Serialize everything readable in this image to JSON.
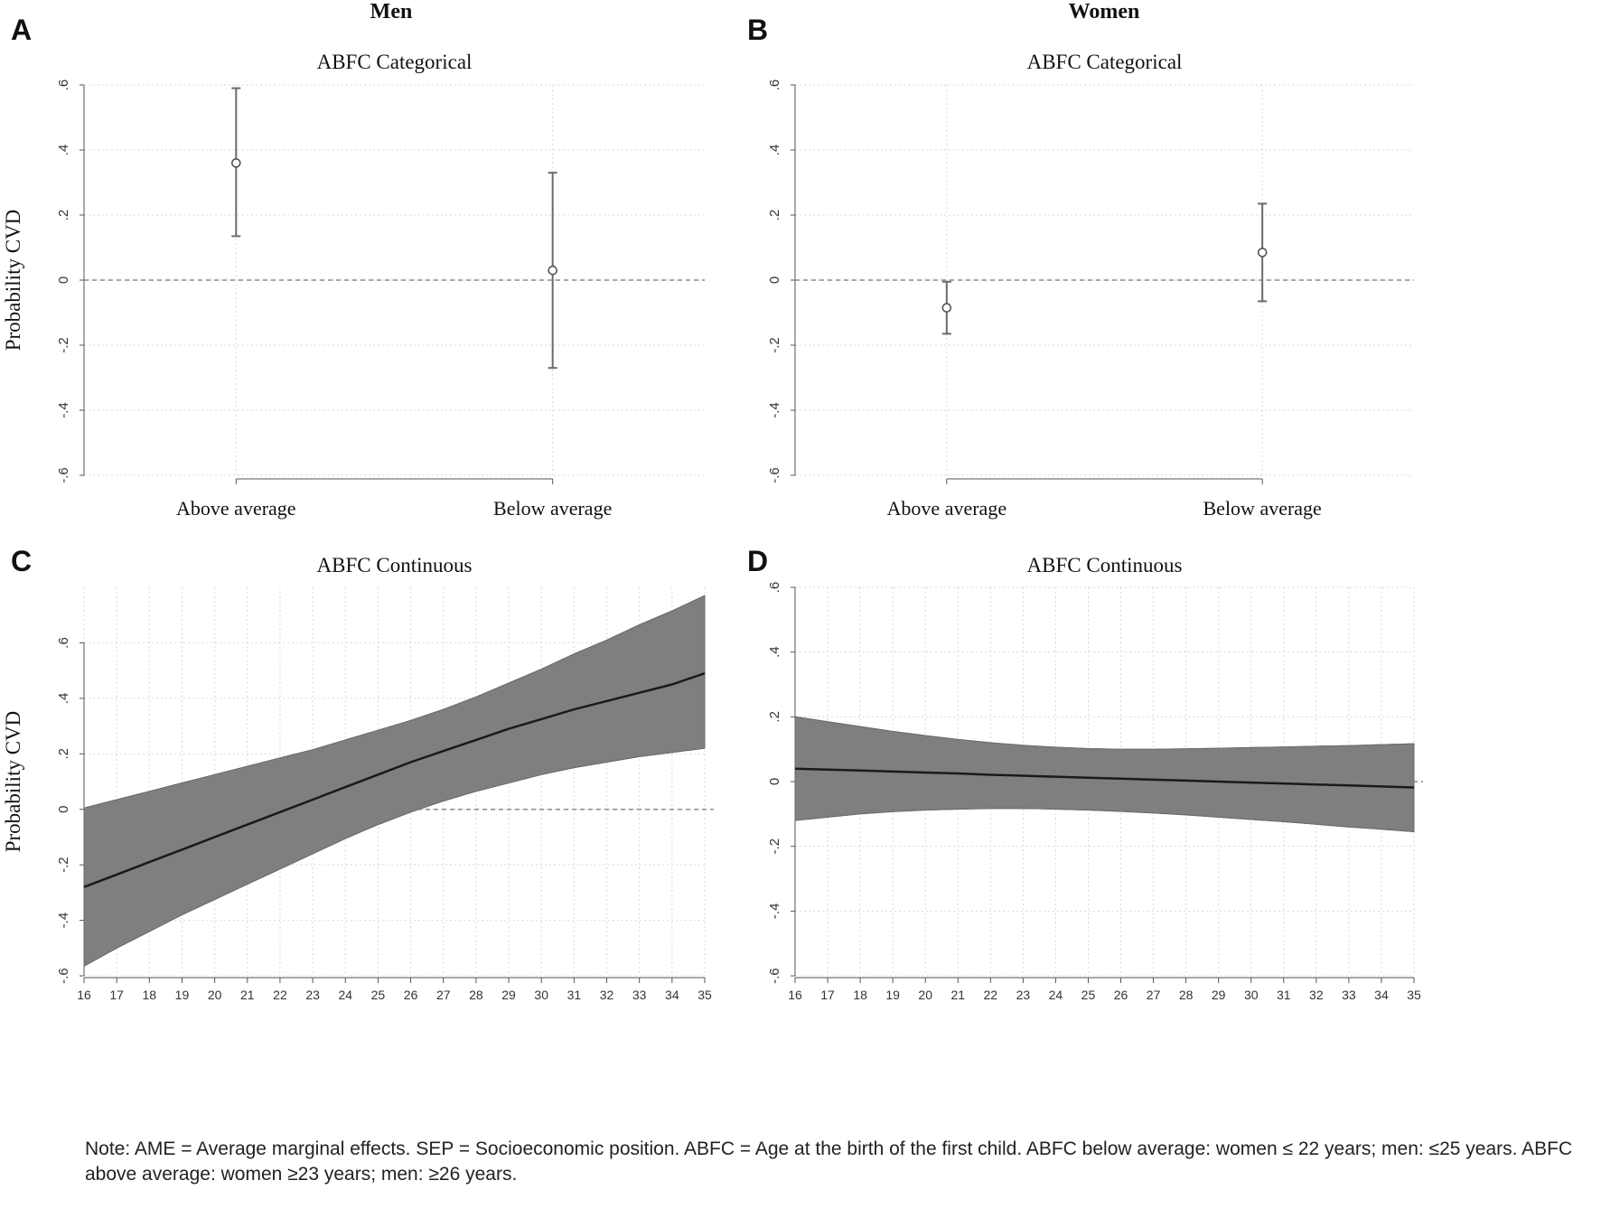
{
  "figure": {
    "col_titles": {
      "men": "Men",
      "women": "Women"
    },
    "note": "Note: AME = Average marginal effects. SEP = Socioeconomic position. ABFC = Age at the birth of the first child. ABFC below average: women ≤ 22 years; men: ≤25 years. ABFC above average: women ≥23 years; men: ≥26 years."
  },
  "colors": {
    "band": "#7f7f7f",
    "line": "#1a1a1a",
    "grid": "#d9d9d9",
    "zero": "#8c8c8c",
    "axis": "#555555",
    "text": "#111111"
  },
  "chart_data": [
    {
      "id": "A",
      "panel_label": "A",
      "type": "scatter",
      "title": "ABFC Categorical",
      "ylabel": "Probability CVD",
      "xlabel": "",
      "categories": [
        "Above average",
        "Below average"
      ],
      "points": [
        {
          "category": "Above average",
          "estimate": 0.36,
          "ci": [
            0.135,
            0.59
          ]
        },
        {
          "category": "Below average",
          "estimate": 0.03,
          "ci": [
            -0.27,
            0.33
          ]
        }
      ],
      "ylim": [
        -0.6,
        0.6
      ],
      "yticks": [
        0.6,
        0.4,
        0.2,
        0,
        -0.2,
        -0.4,
        -0.6
      ],
      "ytick_labels": [
        ".6",
        ".4",
        ".2",
        "0",
        "-.2",
        "-.4",
        "-.6"
      ],
      "reference_line": 0,
      "grid": true
    },
    {
      "id": "B",
      "panel_label": "B",
      "type": "scatter",
      "title": "ABFC Categorical",
      "ylabel": "",
      "xlabel": "",
      "categories": [
        "Above average",
        "Below average"
      ],
      "points": [
        {
          "category": "Above average",
          "estimate": -0.085,
          "ci": [
            -0.165,
            -0.005
          ]
        },
        {
          "category": "Below average",
          "estimate": 0.085,
          "ci": [
            -0.065,
            0.235
          ]
        }
      ],
      "ylim": [
        -0.6,
        0.6
      ],
      "yticks": [
        0.6,
        0.4,
        0.2,
        0,
        -0.2,
        -0.4,
        -0.6
      ],
      "ytick_labels": [
        ".6",
        ".4",
        ".2",
        "0",
        "-.2",
        "-.4",
        "-.6"
      ],
      "reference_line": 0,
      "grid": true
    },
    {
      "id": "C",
      "panel_label": "C",
      "type": "area",
      "title": "ABFC Continuous",
      "ylabel": "Probability CVD",
      "xlabel": "",
      "x": [
        16,
        17,
        18,
        19,
        20,
        21,
        22,
        23,
        24,
        25,
        26,
        27,
        28,
        29,
        30,
        31,
        32,
        33,
        34,
        35
      ],
      "estimate": [
        -0.28,
        -0.235,
        -0.19,
        -0.145,
        -0.1,
        -0.055,
        -0.01,
        0.035,
        0.08,
        0.125,
        0.17,
        0.21,
        0.25,
        0.29,
        0.325,
        0.36,
        0.39,
        0.42,
        0.45,
        0.49
      ],
      "ci_lower": [
        -0.565,
        -0.5,
        -0.44,
        -0.38,
        -0.325,
        -0.27,
        -0.215,
        -0.16,
        -0.105,
        -0.055,
        -0.01,
        0.03,
        0.065,
        0.095,
        0.125,
        0.15,
        0.17,
        0.19,
        0.205,
        0.22
      ],
      "ci_upper": [
        0.005,
        0.035,
        0.065,
        0.095,
        0.125,
        0.155,
        0.185,
        0.215,
        0.25,
        0.285,
        0.32,
        0.36,
        0.405,
        0.455,
        0.505,
        0.56,
        0.61,
        0.665,
        0.715,
        0.77
      ],
      "xlim": [
        16,
        35
      ],
      "ylim": [
        -0.6,
        0.8
      ],
      "yticks": [
        0.6,
        0.4,
        0.2,
        0,
        -0.2,
        -0.4,
        -0.6
      ],
      "ytick_labels": [
        ".6",
        ".4",
        ".2",
        "0",
        "-.2",
        "-.4",
        "-.6"
      ],
      "xticks": [
        16,
        17,
        18,
        19,
        20,
        21,
        22,
        23,
        24,
        25,
        26,
        27,
        28,
        29,
        30,
        31,
        32,
        33,
        34,
        35
      ],
      "xtick_labels": [
        "16",
        "17",
        "18",
        "19",
        "20",
        "21",
        "22",
        "23",
        "24",
        "25",
        "26",
        "27",
        "28",
        "29",
        "30",
        "31",
        "32",
        "33",
        "34",
        "35"
      ],
      "reference_line": 0,
      "grid": true
    },
    {
      "id": "D",
      "panel_label": "D",
      "type": "area",
      "title": "ABFC Continuous",
      "ylabel": "",
      "xlabel": "",
      "x": [
        16,
        17,
        18,
        19,
        20,
        21,
        22,
        23,
        24,
        25,
        26,
        27,
        28,
        29,
        30,
        31,
        32,
        33,
        34,
        35
      ],
      "estimate": [
        0.04,
        0.037,
        0.034,
        0.031,
        0.028,
        0.025,
        0.021,
        0.018,
        0.015,
        0.012,
        0.009,
        0.006,
        0.003,
        0.0,
        -0.003,
        -0.006,
        -0.009,
        -0.012,
        -0.015,
        -0.018
      ],
      "ci_lower": [
        -0.12,
        -0.11,
        -0.1,
        -0.093,
        -0.088,
        -0.085,
        -0.083,
        -0.083,
        -0.085,
        -0.088,
        -0.092,
        -0.097,
        -0.103,
        -0.11,
        -0.117,
        -0.124,
        -0.132,
        -0.14,
        -0.147,
        -0.155
      ],
      "ci_upper": [
        0.2,
        0.185,
        0.17,
        0.155,
        0.142,
        0.13,
        0.12,
        0.112,
        0.106,
        0.102,
        0.1,
        0.1,
        0.101,
        0.103,
        0.105,
        0.107,
        0.109,
        0.111,
        0.114,
        0.117
      ],
      "xlim": [
        16,
        35
      ],
      "ylim": [
        -0.6,
        0.6
      ],
      "yticks": [
        0.6,
        0.4,
        0.2,
        0,
        -0.2,
        -0.4,
        -0.6
      ],
      "ytick_labels": [
        ".6",
        ".4",
        ".2",
        "0",
        "-.2",
        "-.4",
        "-.6"
      ],
      "xticks": [
        16,
        17,
        18,
        19,
        20,
        21,
        22,
        23,
        24,
        25,
        26,
        27,
        28,
        29,
        30,
        31,
        32,
        33,
        34,
        35
      ],
      "xtick_labels": [
        "16",
        "17",
        "18",
        "19",
        "20",
        "21",
        "22",
        "23",
        "24",
        "25",
        "26",
        "27",
        "28",
        "29",
        "30",
        "31",
        "32",
        "33",
        "34",
        "35"
      ],
      "reference_line": 0,
      "grid": true
    }
  ]
}
